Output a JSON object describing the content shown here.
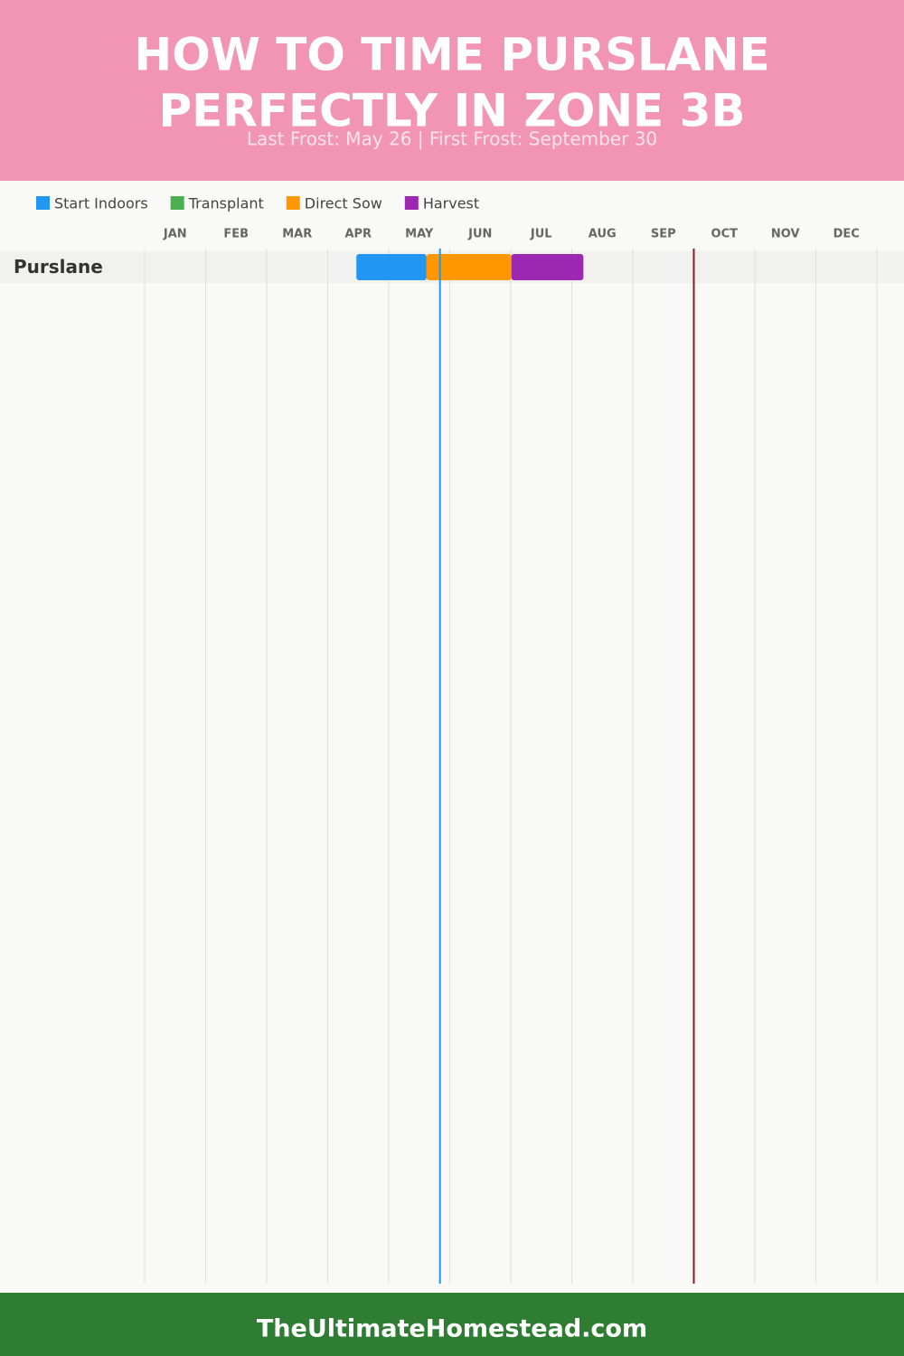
{
  "chart_data": {
    "type": "gantt",
    "title": [
      "HOW TO TIME PURSLANE",
      "PERFECTLY IN ZONE 3B"
    ],
    "subtitle": "Last Frost: May 26 | First Frost: September 30",
    "months": [
      "JAN",
      "FEB",
      "MAR",
      "APR",
      "MAY",
      "JUN",
      "JUL",
      "AUG",
      "SEP",
      "OCT",
      "NOV",
      "DEC"
    ],
    "xlim": [
      0,
      12
    ],
    "categories": [
      "Purslane"
    ],
    "series": [
      {
        "name": "Start Indoors",
        "color": "#2196f3",
        "values": [
          [
            3.47,
            4.62
          ]
        ]
      },
      {
        "name": "Transplant",
        "color": "#4caf50",
        "values": [
          null
        ]
      },
      {
        "name": "Direct Sow",
        "color": "#ff9800",
        "values": [
          [
            4.62,
            6.01
          ]
        ]
      },
      {
        "name": "Harvest",
        "color": "#9c27b0",
        "values": [
          [
            6.01,
            7.19
          ]
        ]
      }
    ],
    "frost_lines": [
      {
        "value": 4.84,
        "color": "#2196f3"
      },
      {
        "value": 9.0,
        "color": "#8b1a1a"
      }
    ],
    "grid": true,
    "footer": "TheUltimateHomestead.com"
  }
}
